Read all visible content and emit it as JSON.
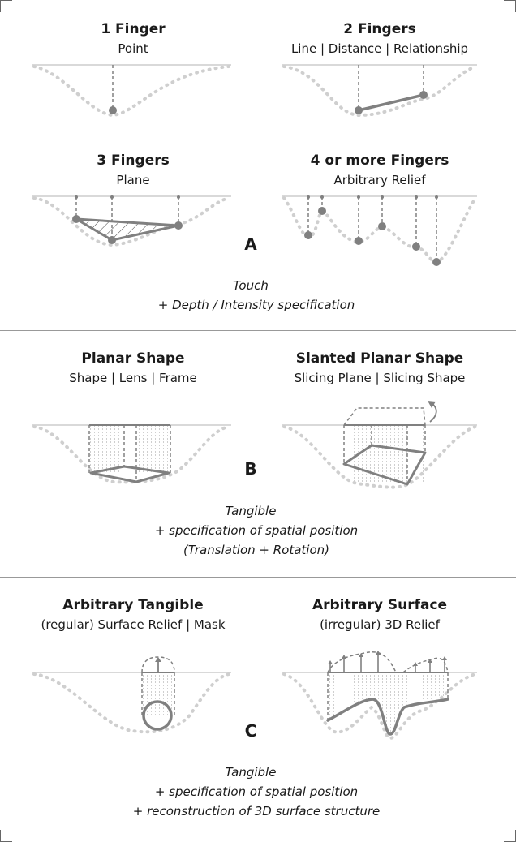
{
  "section_a": {
    "letter": "A",
    "panels": [
      {
        "title": "1 Finger",
        "subtitle": "Point"
      },
      {
        "title": "2 Fingers",
        "subtitle": "Line | Distance | Relationship"
      },
      {
        "title": "3 Fingers",
        "subtitle": "Plane"
      },
      {
        "title": "4 or more Fingers",
        "subtitle": "Arbitrary Relief"
      }
    ],
    "caption": [
      "Touch",
      "+ Depth / Intensity specification"
    ]
  },
  "section_b": {
    "letter": "B",
    "panels": [
      {
        "title": "Planar Shape",
        "subtitle": "Shape | Lens | Frame"
      },
      {
        "title": "Slanted Planar Shape",
        "subtitle": "Slicing Plane | Slicing Shape"
      }
    ],
    "caption": [
      "Tangible",
      "+ specification of spatial position",
      "(Translation + Rotation)"
    ]
  },
  "section_c": {
    "letter": "C",
    "panels": [
      {
        "title": "Arbitrary Tangible",
        "subtitle": "(regular) Surface Relief | Mask"
      },
      {
        "title": "Arbitrary Surface",
        "subtitle": "(irregular) 3D Relief"
      }
    ],
    "caption": [
      "Tangible",
      "+ specification of spatial position",
      "+ reconstruction of 3D surface structure"
    ]
  },
  "colors": {
    "stroke": "#808080",
    "dotted": "#cfcfcf",
    "surface": "#d9d9d9",
    "divider": "#999999"
  }
}
